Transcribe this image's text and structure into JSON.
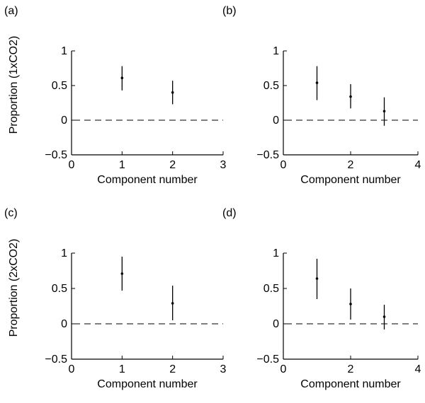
{
  "figure": {
    "row_labels": [
      "Proportion (1xCO2)",
      "Proportion (2xCO2)"
    ]
  },
  "chart_data": [
    {
      "type": "scatter",
      "panel_label": "(a)",
      "xlabel": "Component number",
      "ylabel": "Proportion (1xCO2)",
      "xlim": [
        0,
        3
      ],
      "ylim": [
        -0.5,
        1
      ],
      "xticks": [
        "0",
        "1",
        "2",
        "3"
      ],
      "yticks": [
        "−0.5",
        "0",
        "0.5",
        "1"
      ],
      "grid": false,
      "reference_line": {
        "y": 0,
        "style": "dashed"
      },
      "points": [
        {
          "x": 1,
          "y": 0.61,
          "lo": 0.43,
          "hi": 0.78
        },
        {
          "x": 2,
          "y": 0.4,
          "lo": 0.23,
          "hi": 0.57
        }
      ]
    },
    {
      "type": "scatter",
      "panel_label": "(b)",
      "xlabel": "Component number",
      "ylabel": "",
      "xlim": [
        0,
        4
      ],
      "ylim": [
        -0.5,
        1
      ],
      "xticks": [
        "0",
        "2",
        "4"
      ],
      "yticks": [
        "−0.5",
        "0",
        "0.5",
        "1"
      ],
      "grid": false,
      "reference_line": {
        "y": 0,
        "style": "dashed"
      },
      "points": [
        {
          "x": 1,
          "y": 0.54,
          "lo": 0.29,
          "hi": 0.78
        },
        {
          "x": 2,
          "y": 0.34,
          "lo": 0.17,
          "hi": 0.52
        },
        {
          "x": 3,
          "y": 0.13,
          "lo": -0.08,
          "hi": 0.33
        }
      ]
    },
    {
      "type": "scatter",
      "panel_label": "(c)",
      "xlabel": "Component number",
      "ylabel": "Proportion (2xCO2)",
      "xlim": [
        0,
        3
      ],
      "ylim": [
        -0.5,
        1
      ],
      "xticks": [
        "0",
        "1",
        "2",
        "3"
      ],
      "yticks": [
        "−0.5",
        "0",
        "0.5",
        "1"
      ],
      "grid": false,
      "reference_line": {
        "y": 0,
        "style": "dashed"
      },
      "points": [
        {
          "x": 1,
          "y": 0.71,
          "lo": 0.47,
          "hi": 0.95
        },
        {
          "x": 2,
          "y": 0.29,
          "lo": 0.05,
          "hi": 0.54
        }
      ]
    },
    {
      "type": "scatter",
      "panel_label": "(d)",
      "xlabel": "Component number",
      "ylabel": "",
      "xlim": [
        0,
        4
      ],
      "ylim": [
        -0.5,
        1
      ],
      "xticks": [
        "0",
        "2",
        "4"
      ],
      "yticks": [
        "−0.5",
        "0",
        "0.5",
        "1"
      ],
      "grid": false,
      "reference_line": {
        "y": 0,
        "style": "dashed"
      },
      "points": [
        {
          "x": 1,
          "y": 0.64,
          "lo": 0.35,
          "hi": 0.92
        },
        {
          "x": 2,
          "y": 0.28,
          "lo": 0.06,
          "hi": 0.5
        },
        {
          "x": 3,
          "y": 0.1,
          "lo": -0.08,
          "hi": 0.27
        }
      ]
    }
  ]
}
